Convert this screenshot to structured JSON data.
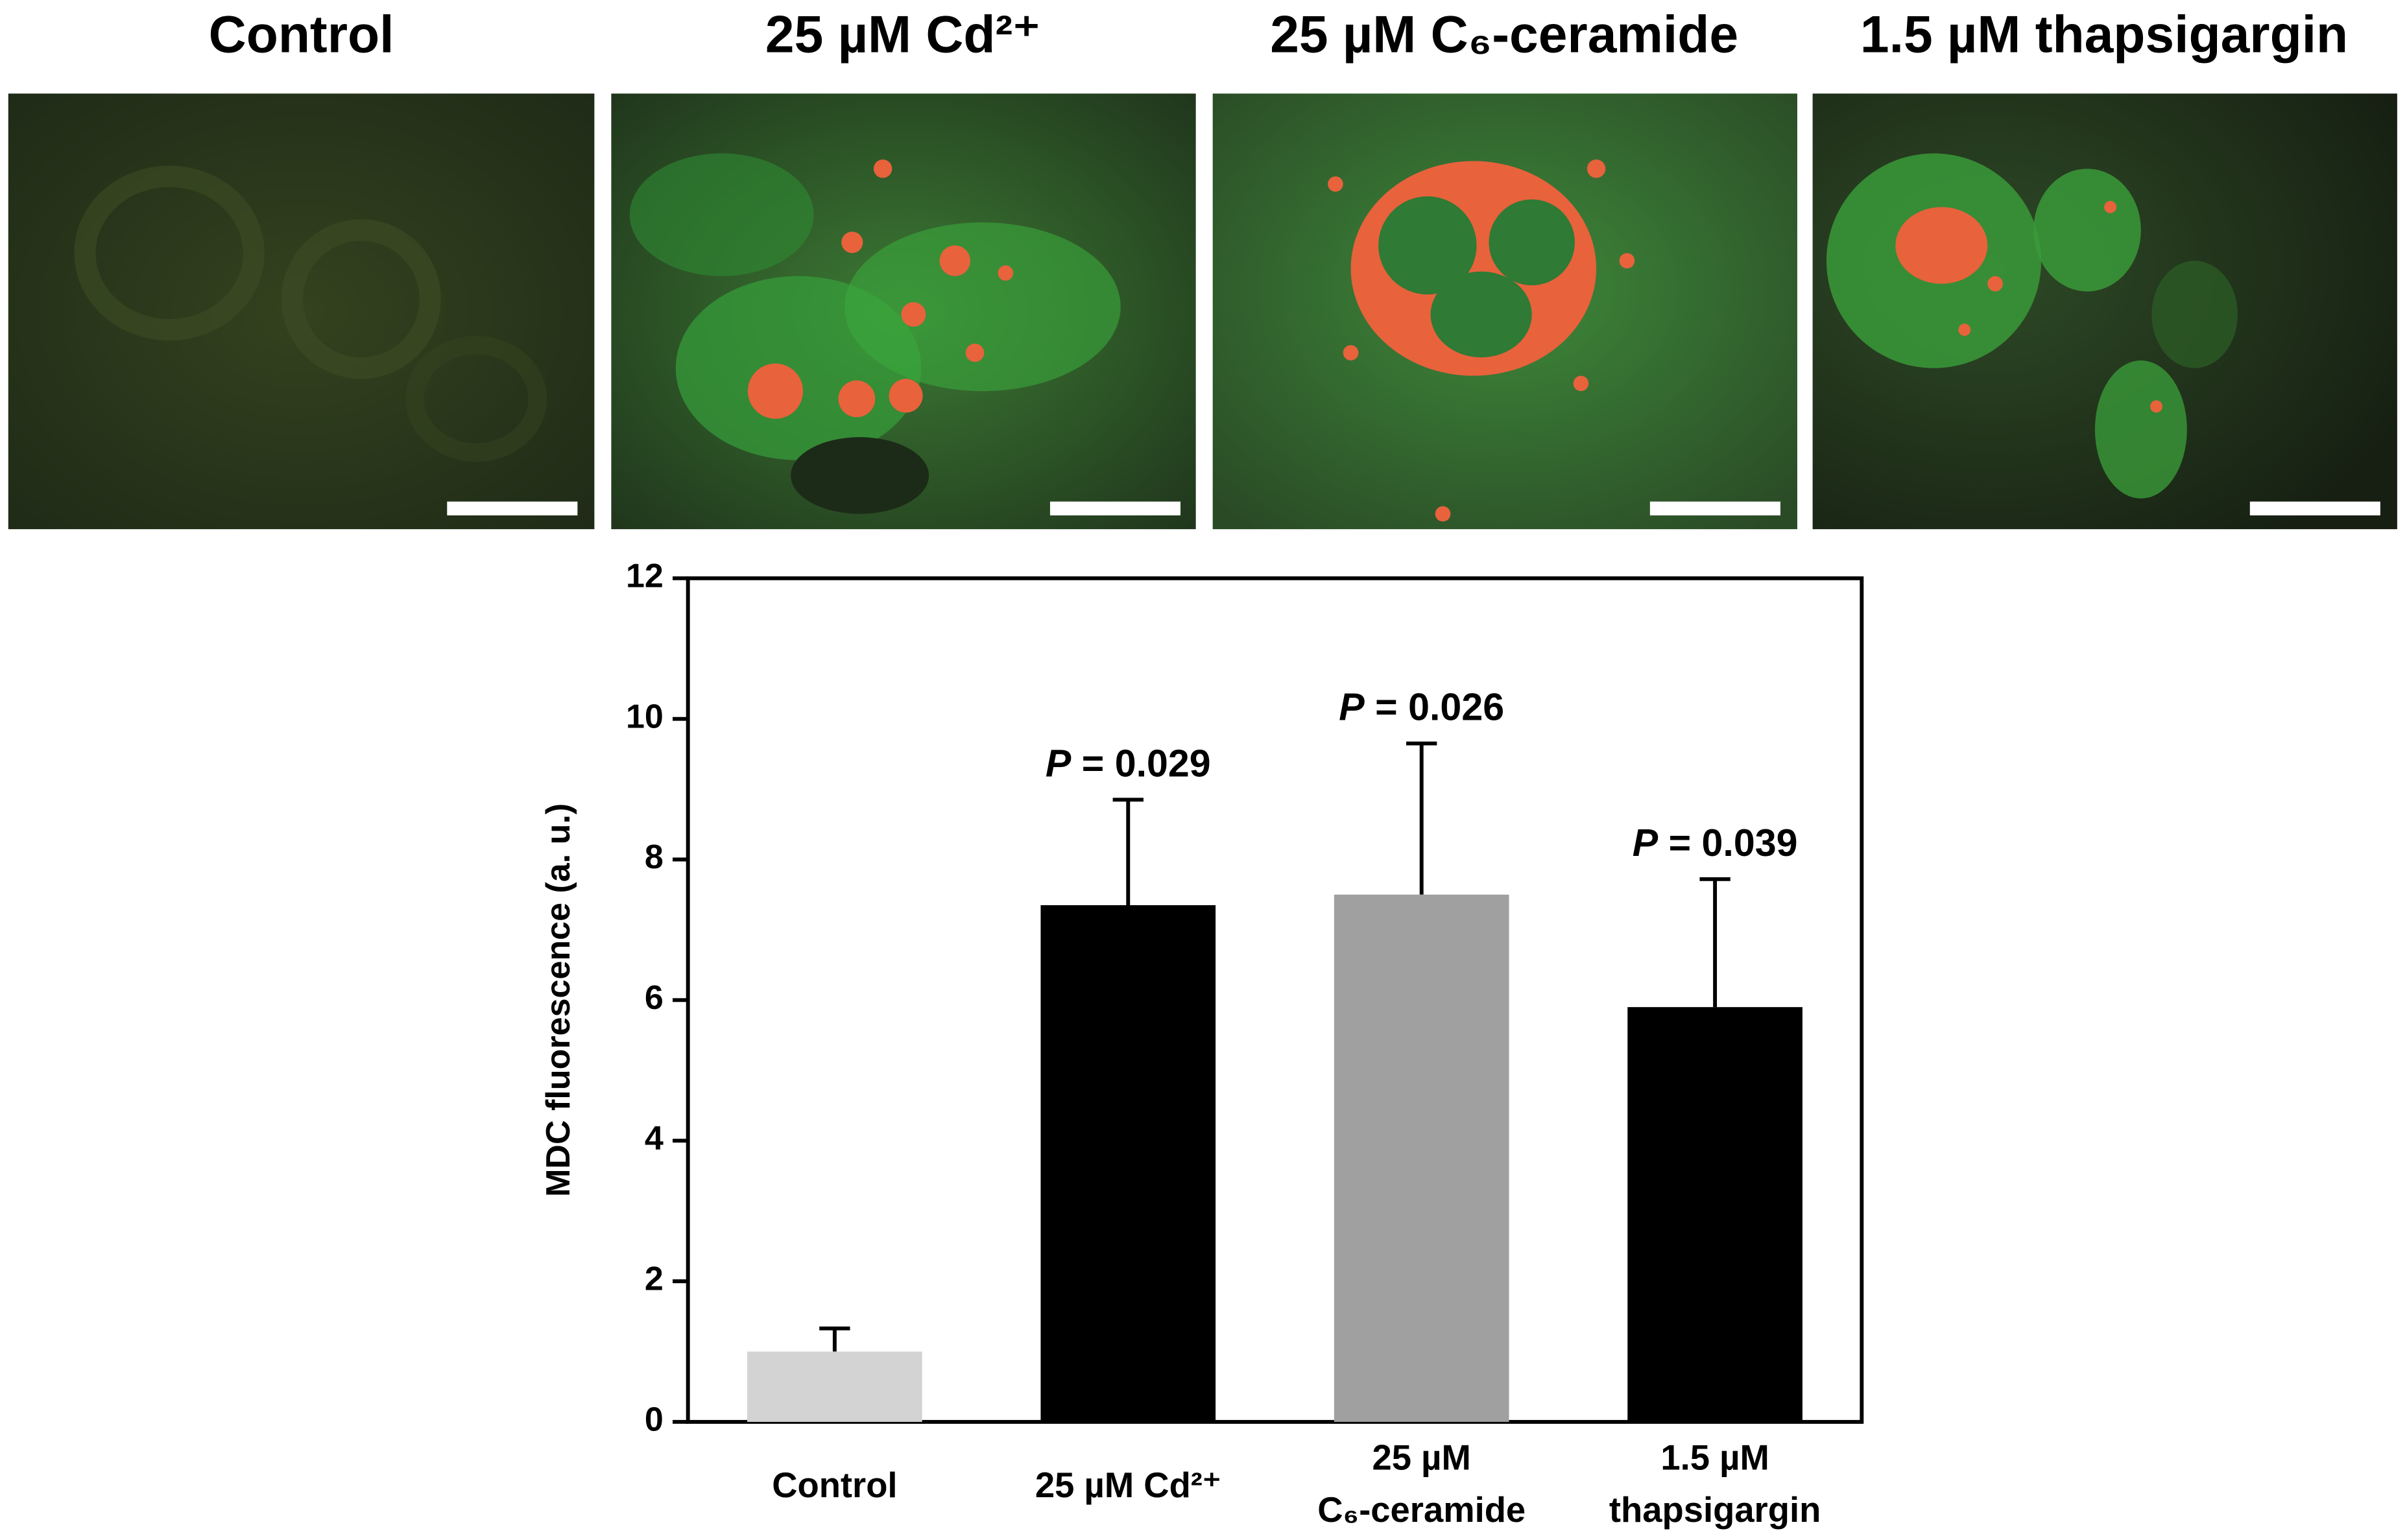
{
  "panels": [
    {
      "title": "Control"
    },
    {
      "title": "25 µM Cd²⁺"
    },
    {
      "title": "25 µM C₆-ceramide"
    },
    {
      "title": "1.5 µM thapsigargin"
    }
  ],
  "chart_data": {
    "type": "bar",
    "ylabel": "MDC fluorescence (a. u.)",
    "categories": [
      [
        "Control"
      ],
      [
        "25 µM Cd²⁺"
      ],
      [
        "25 µM",
        "C₆-ceramide"
      ],
      [
        "1.5 µM",
        "thapsigargin"
      ]
    ],
    "values": [
      1.0,
      7.35,
      7.5,
      5.9
    ],
    "errors": [
      0.33,
      1.5,
      2.15,
      1.82
    ],
    "colors": [
      "#d3d3d3",
      "#000000",
      "#a0a0a0",
      "#000000"
    ],
    "p_labels": [
      null,
      {
        "symbol": "P",
        "text": " = 0.029"
      },
      {
        "symbol": "P",
        "text": " = 0.026"
      },
      {
        "symbol": "P",
        "text": " = 0.039"
      }
    ],
    "ylim": [
      0,
      12
    ],
    "yticks": [
      0,
      2,
      4,
      6,
      8,
      10,
      12
    ],
    "grid": false
  }
}
